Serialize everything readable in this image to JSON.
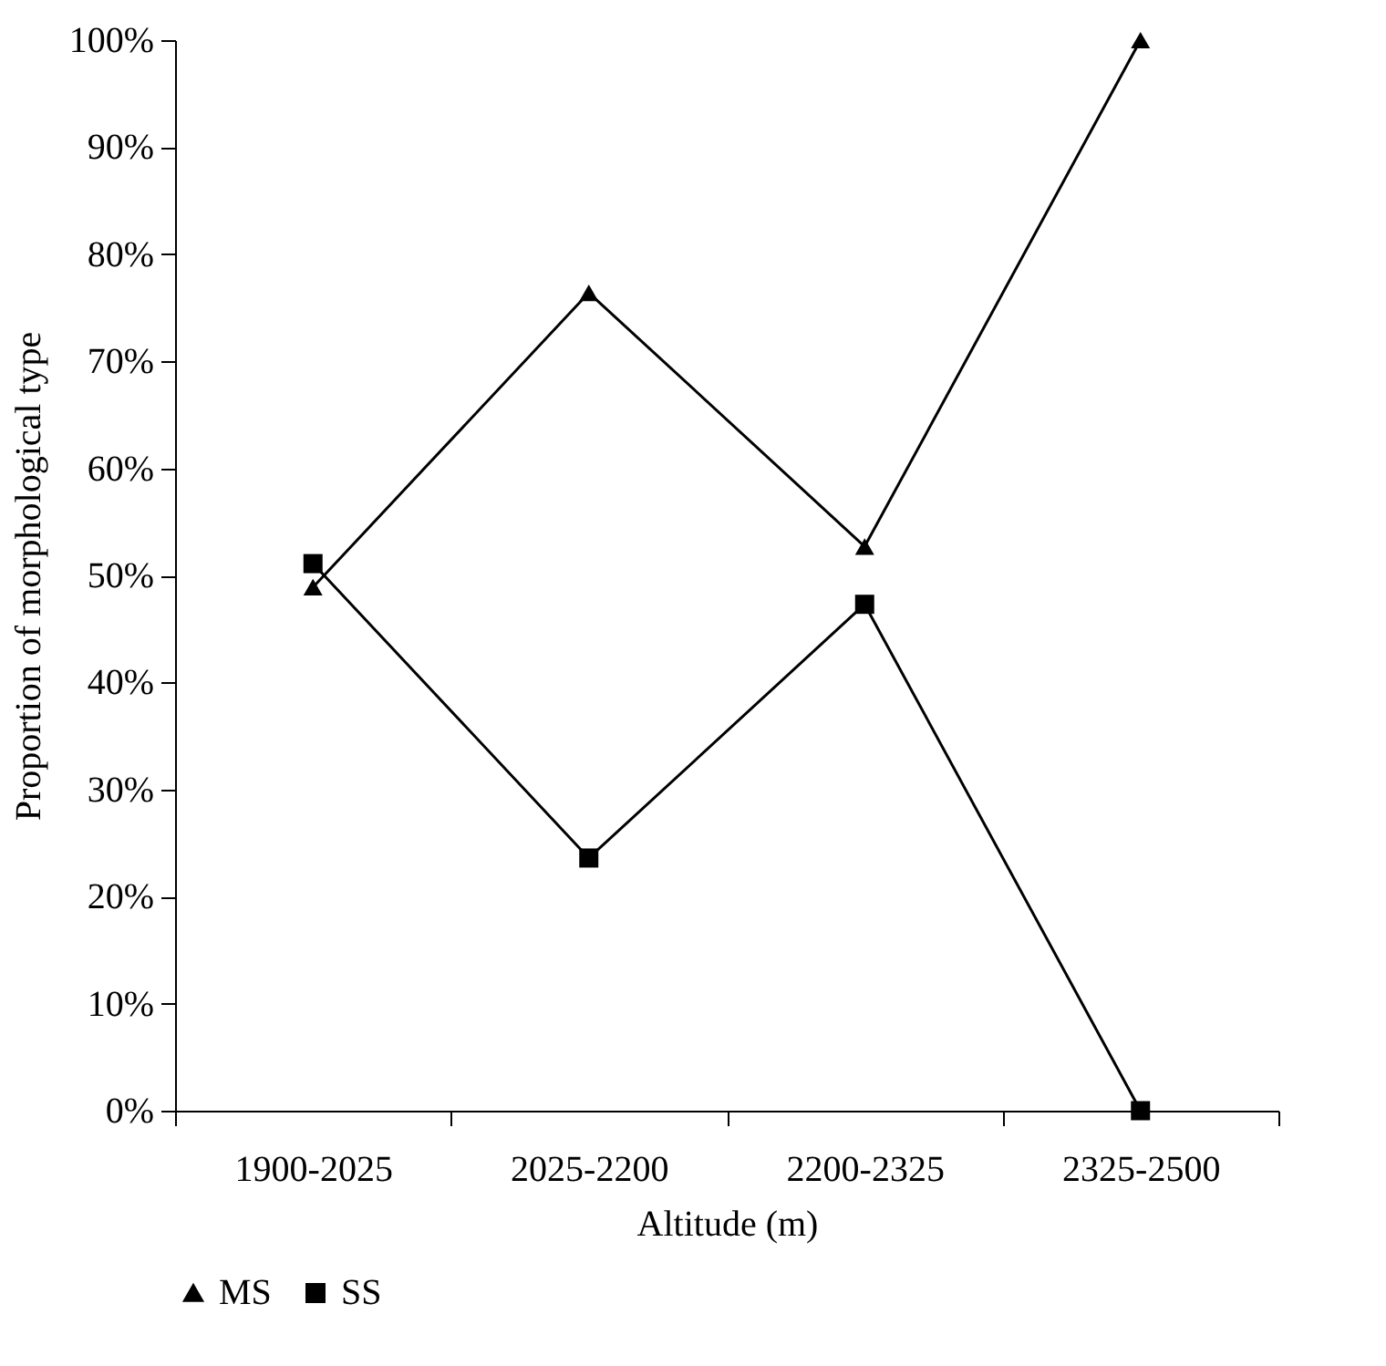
{
  "chart_data": {
    "type": "line",
    "xlabel": "Altitude (m)",
    "ylabel": "Proportion of morphological type",
    "categories": [
      "1900-2025",
      "2025-2200",
      "2200-2325",
      "2325-2500"
    ],
    "series": [
      {
        "name": "MS",
        "color": "#000000",
        "marker": "triangle",
        "values": [
          48.9,
          76.4,
          52.7,
          100
        ]
      },
      {
        "name": "SS",
        "color": "#000000",
        "marker": "square",
        "values": [
          51.1,
          23.6,
          47.3,
          0
        ]
      }
    ],
    "ylim": [
      0,
      100
    ],
    "yticks": [
      {
        "value": 0,
        "label": "0%"
      },
      {
        "value": 10,
        "label": "10%"
      },
      {
        "value": 20,
        "label": "20%"
      },
      {
        "value": 30,
        "label": "30%"
      },
      {
        "value": 40,
        "label": "40%"
      },
      {
        "value": 50,
        "label": "50%"
      },
      {
        "value": 60,
        "label": "60%"
      },
      {
        "value": 70,
        "label": "70%"
      },
      {
        "value": 80,
        "label": "80%"
      },
      {
        "value": 90,
        "label": "90%"
      },
      {
        "value": 100,
        "label": "100%"
      }
    ],
    "grid": false,
    "legend": "bottom",
    "line_style": "solid"
  }
}
